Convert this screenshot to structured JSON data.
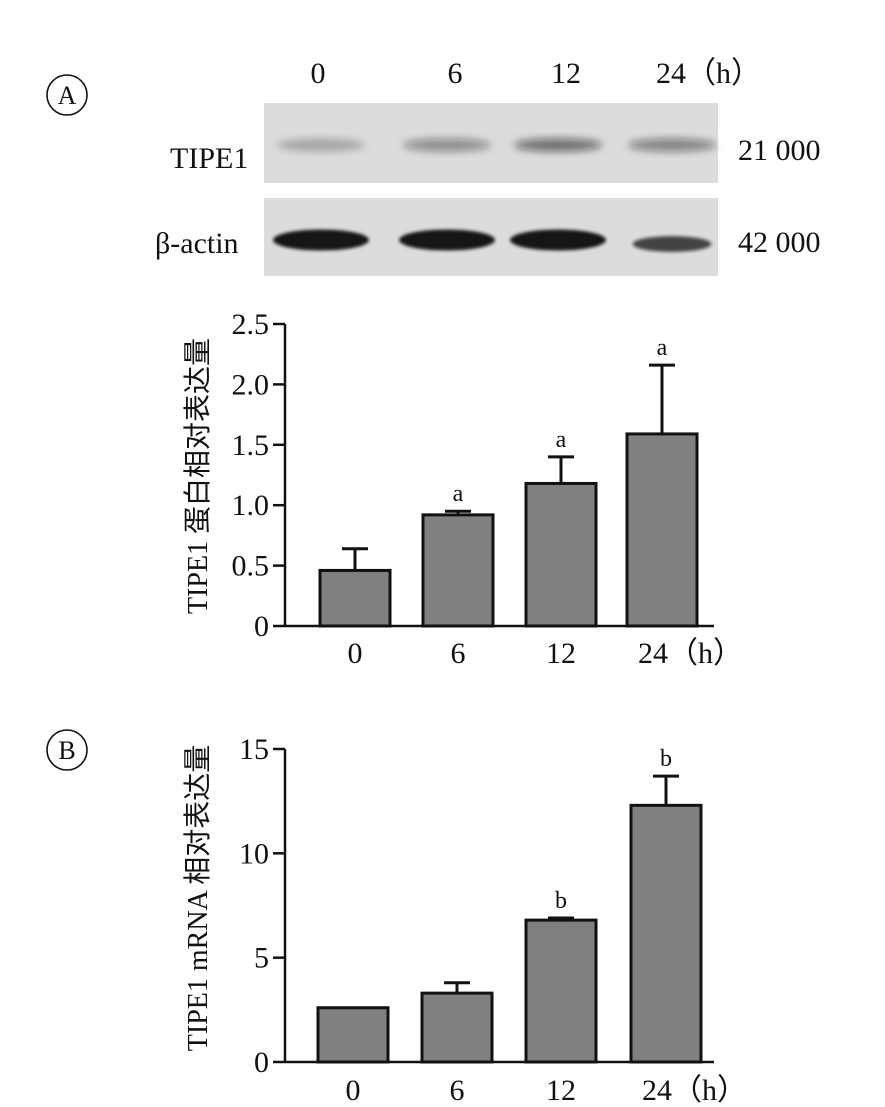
{
  "panel_a": {
    "letter": "A",
    "blot": {
      "lane_labels": [
        "0",
        "6",
        "12",
        "24（h）"
      ],
      "rows": [
        {
          "label": "TIPE1",
          "mw": "21 000",
          "band_intensity": [
            0.25,
            0.4,
            0.55,
            0.45
          ]
        },
        {
          "label": "β-actin",
          "mw": "42 000",
          "band_intensity": [
            1.0,
            1.0,
            1.0,
            0.75
          ]
        }
      ],
      "colors": {
        "membrane": "#dcdcdc",
        "band": "#151515"
      }
    }
  },
  "panel_b": {
    "letter": "B"
  },
  "chart_data": [
    {
      "type": "bar",
      "categories": [
        "0",
        "6",
        "12",
        "24（h）"
      ],
      "values": [
        0.46,
        0.92,
        1.18,
        1.59
      ],
      "error_upper": [
        0.64,
        0.95,
        1.4,
        2.16
      ],
      "significance": [
        "",
        "a",
        "a",
        "a"
      ],
      "ylabel": "TIPE1 蛋白相对表达量",
      "xlabel": "",
      "ylim": [
        0,
        2.5
      ],
      "yticks": [
        "0",
        "0.5",
        "1.0",
        "1.5",
        "2.0",
        "2.5"
      ],
      "bar_color": "#808080",
      "grid": false
    },
    {
      "type": "bar",
      "categories": [
        "0",
        "6",
        "12",
        "24（h）"
      ],
      "values": [
        2.6,
        3.3,
        6.8,
        12.3
      ],
      "error_upper": [
        2.6,
        3.8,
        6.9,
        13.7
      ],
      "significance": [
        "",
        "",
        "b",
        "b"
      ],
      "ylabel": "TIPE1 mRNA 相对表达量",
      "xlabel": "",
      "ylim": [
        0,
        15
      ],
      "yticks": [
        "0",
        "5",
        "10",
        "15"
      ],
      "bar_color": "#808080",
      "grid": false
    }
  ]
}
